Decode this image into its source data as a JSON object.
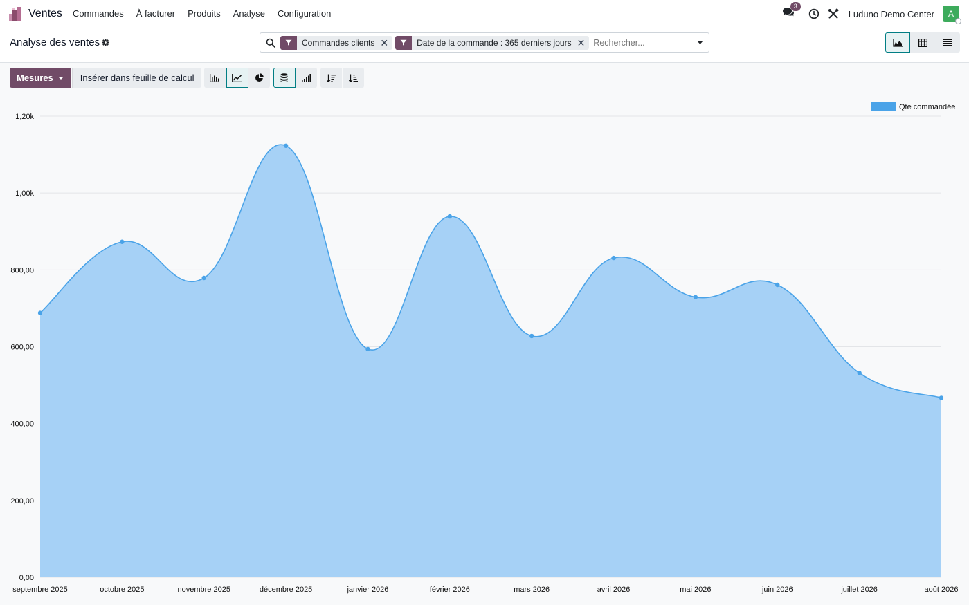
{
  "app": {
    "name": "Ventes"
  },
  "nav": {
    "items": [
      {
        "label": "Commandes"
      },
      {
        "label": "À facturer"
      },
      {
        "label": "Produits"
      },
      {
        "label": "Analyse"
      },
      {
        "label": "Configuration"
      }
    ],
    "chat_count": "3",
    "company": "Luduno Demo Center",
    "avatar_letter": "A"
  },
  "control_panel": {
    "title": "Analyse des ventes",
    "facets": [
      {
        "label": "Commandes clients"
      },
      {
        "label": "Date de la commande : 365 derniers jours"
      }
    ],
    "search_placeholder": "Rechercher..."
  },
  "toolbar": {
    "measures_label": "Mesures",
    "insert_label": "Insérer dans feuille de calcul"
  },
  "colors": {
    "brand": "#714B67",
    "accent": "#017e84",
    "series_line": "#4aa3e8",
    "series_fill": "#a6d1f6"
  },
  "chart_data": {
    "type": "area",
    "x": [
      "septembre 2025",
      "octobre 2025",
      "novembre 2025",
      "décembre 2025",
      "janvier 2026",
      "février 2026",
      "mars 2026",
      "avril 2026",
      "mai 2026",
      "juin 2026",
      "juillet 2026",
      "août 2026"
    ],
    "series": [
      {
        "name": "Qté commandée",
        "values": [
          688,
          873,
          779,
          1123,
          594,
          939,
          628,
          831,
          729,
          761,
          532,
          467
        ]
      }
    ],
    "y_ticks": [
      "0,00",
      "200,00",
      "400,00",
      "600,00",
      "800,00",
      "1,00k",
      "1,20k"
    ],
    "ylim": [
      0,
      1200
    ],
    "grid": true,
    "legend_position": "top-right"
  }
}
